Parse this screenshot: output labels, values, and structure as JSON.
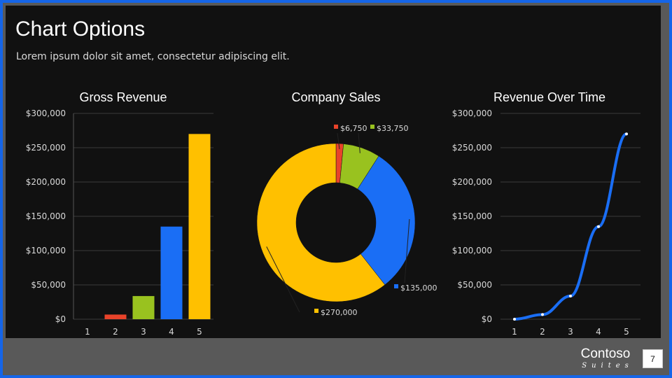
{
  "slide": {
    "title": "Chart Options",
    "subtitle": "Lorem ipsum dolor sit amet, consectetur adipiscing elit.",
    "brand_name": "Contoso",
    "brand_sub": "Suites",
    "page_number": "7"
  },
  "colors": {
    "red": "#e8432a",
    "green": "#99c21f",
    "blue": "#1a6ef5",
    "yellow": "#ffc000",
    "grid": "#3a3a3a",
    "text": "#d9d9d9"
  },
  "chart_data": [
    {
      "type": "bar",
      "title": "Gross Revenue",
      "categories": [
        "1",
        "2",
        "3",
        "4",
        "5"
      ],
      "values": [
        0,
        6750,
        33750,
        135000,
        270000
      ],
      "bar_colors": [
        "#e8432a",
        "#e8432a",
        "#99c21f",
        "#1a6ef5",
        "#ffc000"
      ],
      "ylim": [
        0,
        300000
      ],
      "yticks": [
        0,
        50000,
        100000,
        150000,
        200000,
        250000,
        300000
      ],
      "ytick_labels": [
        "$0",
        "$50,000",
        "$100,000",
        "$150,000",
        "$200,000",
        "$250,000",
        "$300,000"
      ]
    },
    {
      "type": "pie",
      "title": "Company Sales",
      "donut": true,
      "labels": [
        "$6,750",
        "$33,750",
        "$135,000",
        "$270,000"
      ],
      "values": [
        6750,
        33750,
        135000,
        270000
      ],
      "colors": [
        "#e8432a",
        "#99c21f",
        "#1a6ef5",
        "#ffc000"
      ]
    },
    {
      "type": "line",
      "title": "Revenue Over Time",
      "x": [
        "1",
        "2",
        "3",
        "4",
        "5"
      ],
      "values": [
        0,
        6750,
        33750,
        135000,
        270000
      ],
      "line_color": "#1a6ef5",
      "ylim": [
        0,
        300000
      ],
      "yticks": [
        0,
        50000,
        100000,
        150000,
        200000,
        250000,
        300000
      ],
      "ytick_labels": [
        "$0",
        "$50,000",
        "$100,000",
        "$150,000",
        "$200,000",
        "$250,000",
        "$300,000"
      ]
    }
  ]
}
